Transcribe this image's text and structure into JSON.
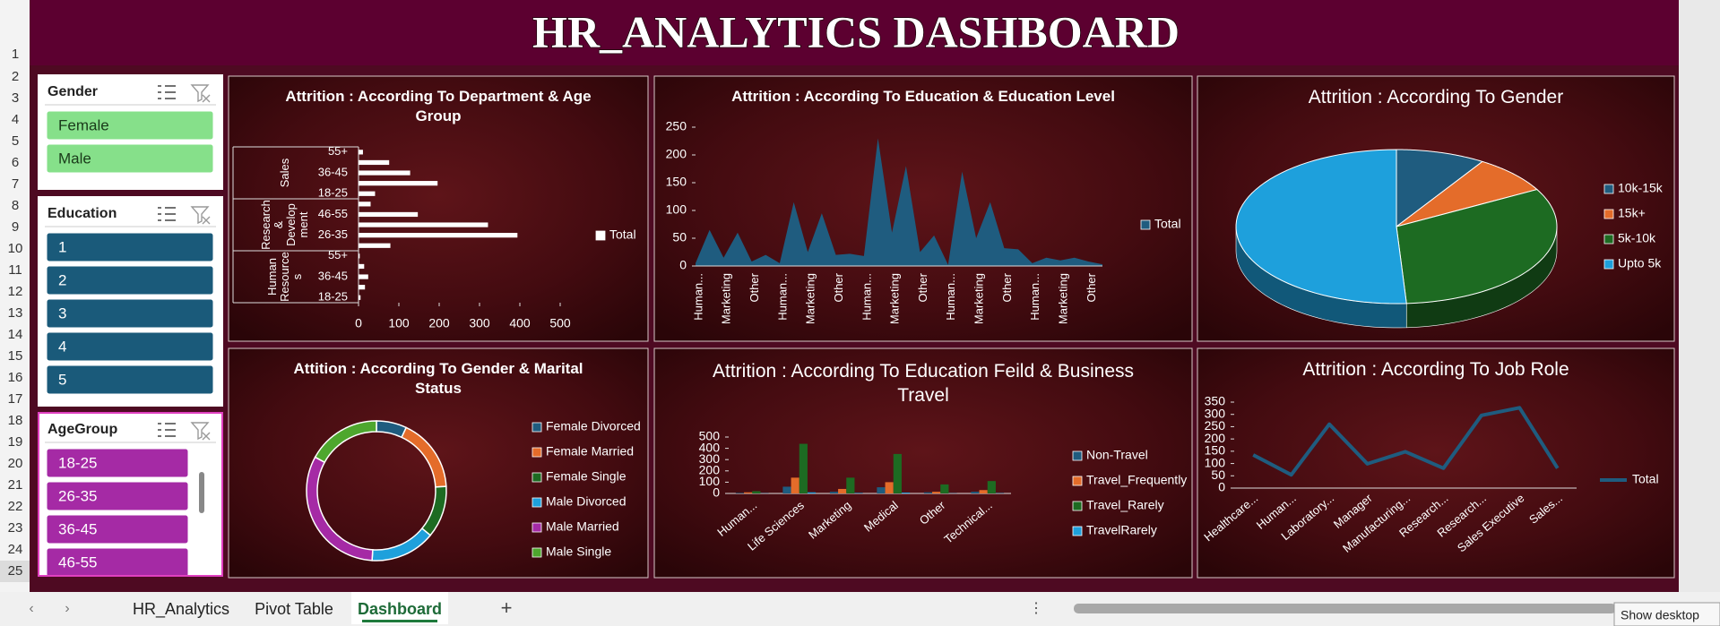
{
  "header": {
    "title": "HR_ANALYTICS DASHBOARD"
  },
  "row_numbers": [
    1,
    2,
    3,
    4,
    5,
    6,
    7,
    8,
    9,
    10,
    11,
    12,
    13,
    14,
    15,
    16,
    17,
    18,
    19,
    20,
    21,
    22,
    23,
    24,
    25
  ],
  "slicers": [
    {
      "title": "Gender",
      "items": [
        "Female",
        "Male"
      ],
      "color": "#86e08a",
      "text_color": "#1a3a1a"
    },
    {
      "title": "Education",
      "items": [
        "1",
        "2",
        "3",
        "4",
        "5"
      ],
      "color": "#1a5a7a",
      "text_color": "#ffffff"
    },
    {
      "title": "AgeGroup",
      "items": [
        "18-25",
        "26-35",
        "36-45",
        "46-55"
      ],
      "color": "#a52aa5",
      "text_color": "#ffffff"
    }
  ],
  "chart_data": [
    {
      "type": "bar",
      "orientation": "horizontal",
      "title": "Attrition : According To Department & Age Group",
      "groups": [
        "Sales",
        "Research & Development",
        "Human Resources"
      ],
      "categories": [
        "55+",
        null,
        "36-45",
        null,
        "18-25",
        null,
        "46-55",
        null,
        "26-35",
        null,
        "55+",
        null,
        "36-45",
        null,
        "18-25"
      ],
      "series": [
        {
          "name": "Total",
          "color": "#ffffff",
          "values": [
            11,
            76,
            128,
            196,
            41,
            30,
            147,
            321,
            394,
            79,
            3,
            14,
            24,
            16,
            5
          ]
        }
      ],
      "xlim": [
        0,
        500
      ],
      "xticks": [
        0,
        100,
        200,
        300,
        400,
        500
      ],
      "legend": "right"
    },
    {
      "type": "area",
      "title": "Attrition : According To Education & Education Level",
      "categories": [
        "Human...",
        null,
        "Marketing",
        null,
        "Other",
        null,
        "Human...",
        null,
        "Marketing",
        null,
        "Other",
        null,
        "Human...",
        null,
        "Marketing",
        null,
        "Other",
        null,
        "Human...",
        null,
        "Marketing",
        null,
        "Other",
        null,
        "Human...",
        null,
        "Marketing",
        null,
        "Other",
        null
      ],
      "series": [
        {
          "name": "Total",
          "color": "#1f5c7f",
          "values": [
            5,
            65,
            15,
            60,
            8,
            20,
            5,
            115,
            25,
            95,
            20,
            22,
            18,
            230,
            60,
            180,
            25,
            55,
            2,
            170,
            50,
            115,
            32,
            30,
            5,
            15,
            10,
            15,
            8,
            3
          ]
        }
      ],
      "ylim": [
        0,
        250
      ],
      "yticks": [
        0,
        50,
        100,
        150,
        200,
        250
      ],
      "legend": "right"
    },
    {
      "type": "pie",
      "three_d": true,
      "title": "Attrition : According To Gender",
      "categories": [
        "10k-15k",
        "15k+",
        "5k-10k",
        "Upto 5k"
      ],
      "values": [
        9,
        8,
        32,
        51
      ],
      "colors": [
        "#1f5c7f",
        "#e46c2a",
        "#1d6b22",
        "#1ea0dc"
      ],
      "legend": "right"
    },
    {
      "type": "donut",
      "title": "Attition : According To Gender & Marital Status",
      "categories": [
        "Female Divorced",
        "Female Married",
        "Female Single",
        "Male Divorced",
        "Male Married",
        "Male Single"
      ],
      "values": [
        7,
        17,
        12,
        15,
        32,
        17
      ],
      "colors": [
        "#1f5c7f",
        "#e46c2a",
        "#1d6b22",
        "#1ea0dc",
        "#a52aa5",
        "#4ea72e"
      ],
      "legend": "right"
    },
    {
      "type": "bar",
      "orientation": "vertical",
      "title": "Attrition : According To Education Feild & Business Travel",
      "categories": [
        "Human...",
        "Life Sciences",
        "Marketing",
        "Medical",
        "Other",
        "Technical..."
      ],
      "series": [
        {
          "name": "Non-Travel",
          "color": "#1f5c7f",
          "values": [
            5,
            60,
            15,
            55,
            10,
            15
          ]
        },
        {
          "name": "Travel_Frequently",
          "color": "#e46c2a",
          "values": [
            10,
            140,
            40,
            100,
            15,
            30
          ]
        },
        {
          "name": "Travel_Rarely",
          "color": "#1d6b22",
          "values": [
            20,
            440,
            140,
            350,
            80,
            110
          ]
        },
        {
          "name": "TravelRarely",
          "color": "#1ea0dc",
          "values": [
            2,
            10,
            5,
            8,
            2,
            3
          ]
        }
      ],
      "ylim": [
        0,
        500
      ],
      "yticks": [
        0,
        100,
        200,
        300,
        400,
        500
      ],
      "legend": "right"
    },
    {
      "type": "line",
      "title": "Attrition : According To Job Role",
      "categories": [
        "Healthcare...",
        "Human...",
        "Laboratory...",
        "Manager",
        "Manufacturing...",
        "Research...",
        "Research...",
        "Sales Executive",
        "Sales..."
      ],
      "series": [
        {
          "name": "Total",
          "color": "#1f5c7f",
          "values": [
            135,
            54,
            260,
            99,
            148,
            81,
            296,
            327,
            81
          ]
        }
      ],
      "ylim": [
        0,
        350
      ],
      "yticks": [
        0,
        50,
        100,
        150,
        200,
        250,
        300,
        350
      ],
      "legend": "right"
    }
  ],
  "tabs": [
    "HR_Analytics",
    "Pivot Table",
    "Dashboard"
  ],
  "active_tab": 2,
  "tooltip": "Show desktop"
}
